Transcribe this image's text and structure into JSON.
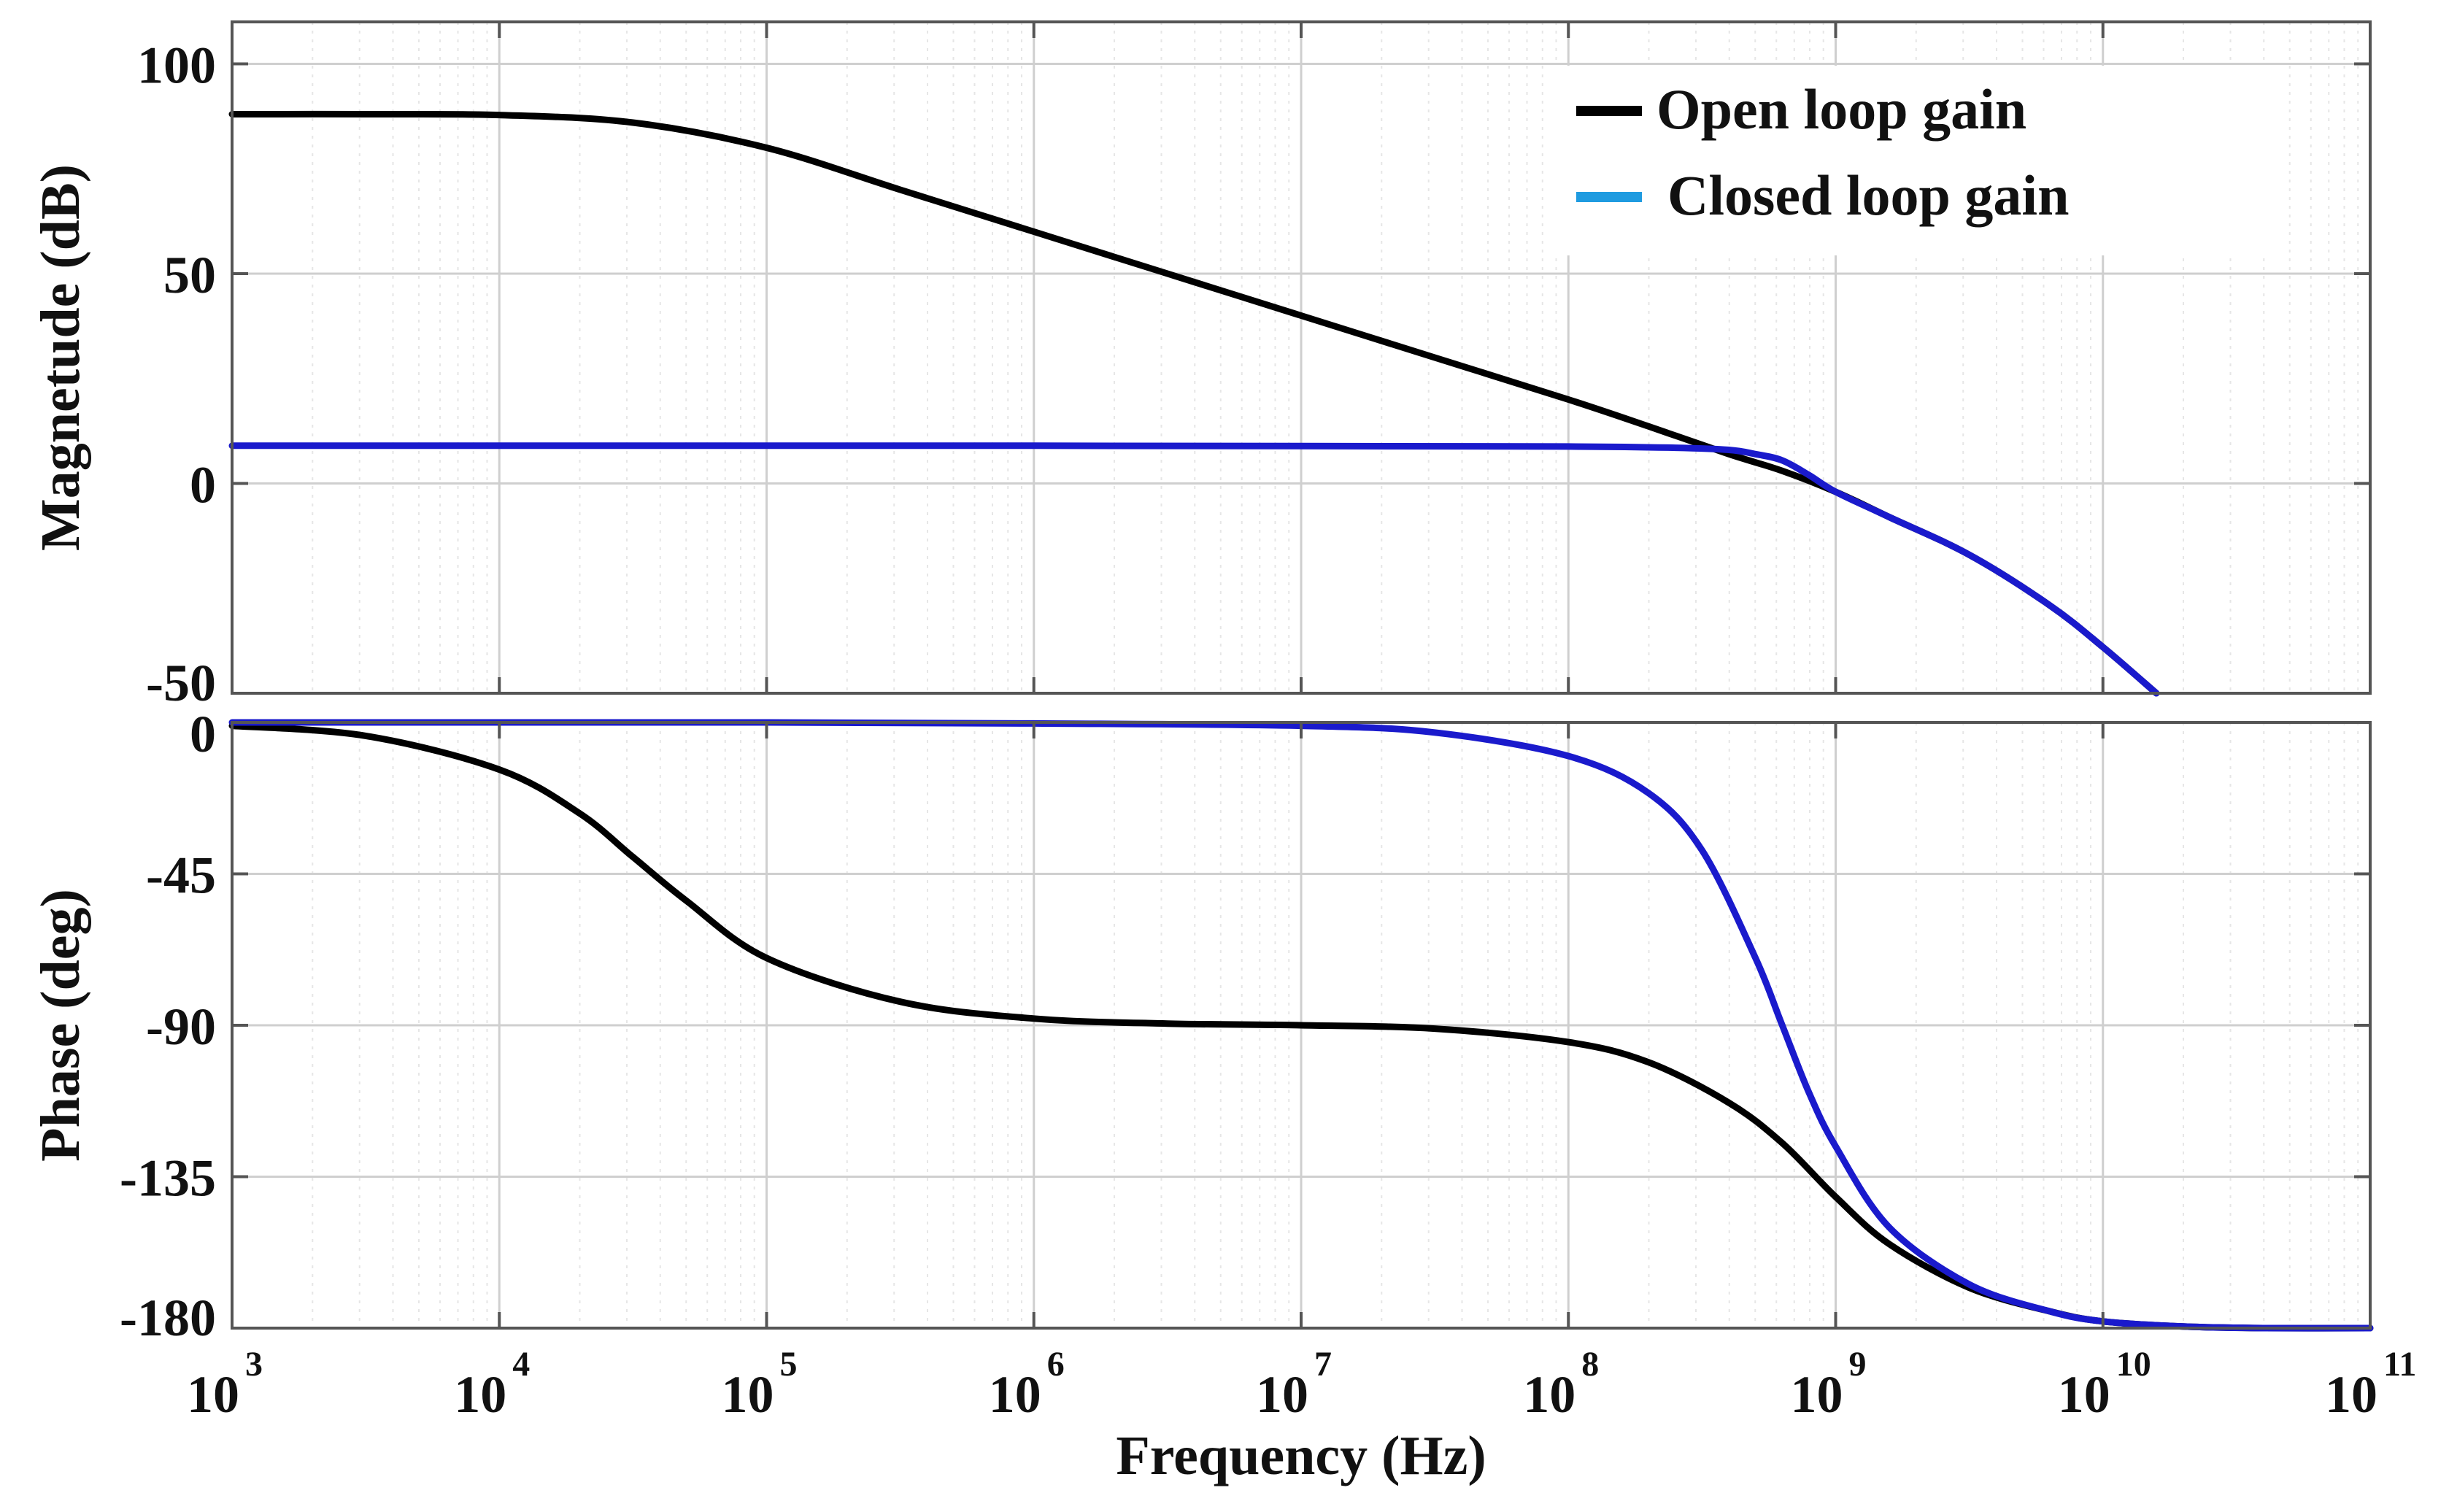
{
  "chart_data": {
    "type": "line",
    "title": "",
    "xlabel": "Frequency (Hz)",
    "xscale": "log",
    "xlim": [
      1000,
      100000000000
    ],
    "x_ticks": [
      {
        "base": "10",
        "exp": "3"
      },
      {
        "base": "10",
        "exp": "4"
      },
      {
        "base": "10",
        "exp": "5"
      },
      {
        "base": "10",
        "exp": "6"
      },
      {
        "base": "10",
        "exp": "7"
      },
      {
        "base": "10",
        "exp": "8"
      },
      {
        "base": "10",
        "exp": "9"
      },
      {
        "base": "10",
        "exp": "10"
      },
      {
        "base": "10",
        "exp": "11"
      }
    ],
    "grid": true,
    "legend_position": "top-right",
    "legend": [
      {
        "label": "Open loop gain",
        "color": "#000000"
      },
      {
        "label": "Closed loop gain",
        "color": "#1f9be0"
      }
    ],
    "subplots": [
      {
        "name": "magnitude",
        "ylabel": "Magnetude (dB)",
        "ylim": [
          -50,
          110
        ],
        "y_ticks": [
          100,
          50,
          0,
          -50
        ],
        "y_tick_labels": [
          "100",
          "50",
          "0",
          "-50"
        ],
        "series": [
          {
            "name": "Open loop gain",
            "color": "#000000",
            "x_log10": [
              3.0,
              3.5,
              4.0,
              4.5,
              5.0,
              5.5,
              6.0,
              6.5,
              7.0,
              7.5,
              8.0,
              8.3,
              8.6,
              8.8,
              9.0,
              9.2,
              9.5,
              9.8,
              10.0,
              10.2
            ],
            "y": [
              88,
              88,
              87.8,
              86,
              80,
              70,
              60,
              50,
              40,
              30,
              20,
              13.6,
              7,
              3,
              -2,
              -8,
              -17,
              -29,
              -39,
              -50
            ]
          },
          {
            "name": "Closed loop gain",
            "color": "#1a1acc",
            "x_log10": [
              3.0,
              4.0,
              5.0,
              6.0,
              7.0,
              8.0,
              8.4,
              8.6,
              8.7,
              8.8,
              8.9,
              9.0,
              9.2,
              9.5,
              9.8,
              10.0,
              10.2
            ],
            "y": [
              9,
              9,
              9,
              9,
              8.9,
              8.8,
              8.5,
              8,
              7,
              5.5,
              2,
              -2,
              -8,
              -17,
              -29,
              -39,
              -50
            ]
          }
        ]
      },
      {
        "name": "phase",
        "ylabel": "Phase (deg)",
        "ylim": [
          -180,
          0
        ],
        "y_ticks": [
          0,
          -45,
          -90,
          -135,
          -180
        ],
        "y_tick_labels": [
          "0",
          "-45",
          "-90",
          "-135",
          "-180"
        ],
        "series": [
          {
            "name": "Open loop gain",
            "color": "#000000",
            "x_log10": [
              3.0,
              3.5,
              4.0,
              4.3,
              4.5,
              4.7,
              5.0,
              5.5,
              6.0,
              6.5,
              7.0,
              7.5,
              8.0,
              8.3,
              8.6,
              8.8,
              9.0,
              9.2,
              9.5,
              9.8,
              10.0,
              10.3,
              10.6,
              11.0
            ],
            "y": [
              -1,
              -4,
              -14,
              -27,
              -40,
              -53,
              -70,
              -83,
              -88,
              -89.5,
              -90,
              -91,
              -95,
              -101,
              -113,
              -125,
              -141,
              -155,
              -168,
              -175,
              -178,
              -179.5,
              -180,
              -180
            ]
          },
          {
            "name": "Closed loop gain",
            "color": "#1a1acc",
            "x_log10": [
              3.0,
              4.0,
              5.0,
              6.0,
              7.0,
              7.5,
              8.0,
              8.3,
              8.5,
              8.7,
              8.8,
              8.9,
              9.0,
              9.2,
              9.5,
              9.8,
              10.0,
              10.3,
              10.6,
              11.0
            ],
            "y": [
              0,
              0,
              0,
              -0.3,
              -1,
              -3,
              -10,
              -21,
              -38,
              -70,
              -90,
              -110,
              -126,
              -150,
              -167,
              -175,
              -178,
              -179.5,
              -180,
              -180
            ]
          }
        ]
      }
    ]
  }
}
